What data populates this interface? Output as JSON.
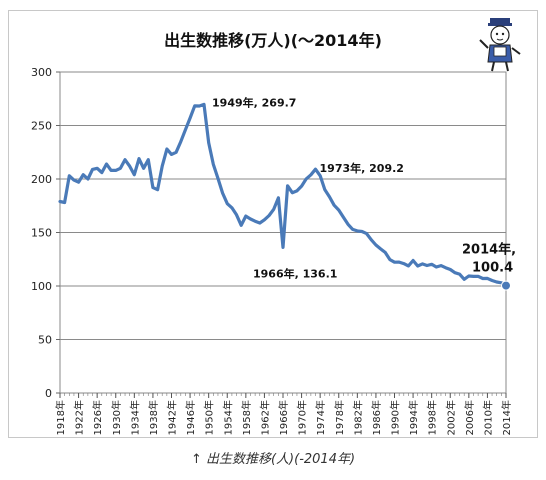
{
  "chart_data": {
    "type": "line",
    "title": "出生数推移(万人)(〜2014年)",
    "ylim": [
      0,
      300
    ],
    "yticks": [
      0,
      50,
      100,
      150,
      200,
      250,
      300
    ],
    "xrange": [
      1918,
      2014
    ],
    "xticks": [
      "1918年",
      "1922年",
      "1926年",
      "1930年",
      "1934年",
      "1938年",
      "1942年",
      "1946年",
      "1950年",
      "1954年",
      "1958年",
      "1962年",
      "1966年",
      "1970年",
      "1974年",
      "1978年",
      "1982年",
      "1986年",
      "1990年",
      "1994年",
      "1998年",
      "2002年",
      "2006年",
      "2010年",
      "2014年"
    ],
    "grid": true,
    "line_color": "#4a7ab8",
    "series": [
      {
        "x": [
          1918,
          1919,
          1920,
          1921,
          1922,
          1923,
          1924,
          1925,
          1926,
          1927,
          1928,
          1929,
          1930,
          1931,
          1932,
          1933,
          1934,
          1935,
          1936,
          1937,
          1938,
          1939,
          1940,
          1941,
          1942,
          1943,
          1944,
          1945,
          1946,
          1947,
          1948,
          1949,
          1950,
          1951,
          1952,
          1953,
          1954,
          1955,
          1956,
          1957,
          1958,
          1959,
          1960,
          1961,
          1962,
          1963,
          1964,
          1965,
          1966,
          1967,
          1968,
          1969,
          1970,
          1971,
          1972,
          1973,
          1974,
          1975,
          1976,
          1977,
          1978,
          1979,
          1980,
          1981,
          1982,
          1983,
          1984,
          1985,
          1986,
          1987,
          1988,
          1989,
          1990,
          1991,
          1992,
          1993,
          1994,
          1995,
          1996,
          1997,
          1998,
          1999,
          2000,
          2001,
          2002,
          2003,
          2004,
          2005,
          2006,
          2007,
          2008,
          2009,
          2010,
          2011,
          2012,
          2013,
          2014
        ],
        "values": [
          179,
          178,
          203,
          199,
          197,
          204,
          200,
          209,
          210,
          206,
          214,
          208,
          208,
          210,
          218,
          212,
          204,
          219,
          210,
          218,
          192,
          190,
          212,
          228,
          223,
          225,
          235,
          246,
          257,
          268.3,
          268.2,
          269.7,
          233.8,
          213.8,
          200.5,
          186.8,
          176.9,
          173.1,
          166.5,
          156.7,
          165.3,
          162.6,
          160.6,
          158.9,
          161.9,
          165.9,
          171.7,
          182.4,
          136.1,
          193.6,
          187.2,
          188.9,
          193.4,
          200.1,
          203.9,
          209.2,
          203.0,
          190.1,
          183.3,
          175.5,
          170.9,
          164.3,
          157.7,
          152.9,
          151.5,
          150.9,
          149.0,
          143.2,
          138.3,
          134.7,
          131.4,
          124.7,
          122.2,
          122.3,
          120.9,
          118.8,
          123.8,
          118.7,
          120.7,
          119.2,
          120.3,
          117.8,
          119.1,
          117.1,
          115.4,
          112.4,
          111.1,
          106.3,
          109.3,
          109.0,
          109.1,
          107.0,
          107.1,
          105.1,
          103.7,
          103.0,
          100.4
        ]
      }
    ],
    "annotations": [
      {
        "label": "1949年, 269.7",
        "x": 1949,
        "y": 269.7
      },
      {
        "label": "1973年, 209.2",
        "x": 1973,
        "y": 209.2
      },
      {
        "label": "1966年, 136.1",
        "x": 1966,
        "y": 136.1
      },
      {
        "label_line1": "2014年,",
        "label_line2": "100.4",
        "x": 2014,
        "y": 100.4
      }
    ]
  },
  "caption": "↑ 出生数推移(人)(-2014年)"
}
